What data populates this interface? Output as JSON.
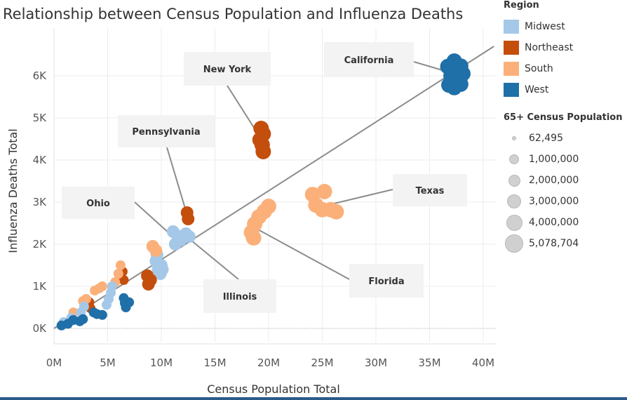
{
  "chart_data": {
    "type": "scatter",
    "title": "Relationship between Census Population and Influenza Deaths",
    "xlabel": "Census Population Total",
    "ylabel": "Influenza Deaths Total",
    "xlim": [
      0,
      41000000
    ],
    "ylim": [
      0,
      6700
    ],
    "x_ticks": [
      0,
      5000000,
      10000000,
      15000000,
      20000000,
      25000000,
      30000000,
      35000000,
      40000000
    ],
    "x_tick_labels": [
      "0M",
      "5M",
      "10M",
      "15M",
      "20M",
      "25M",
      "30M",
      "35M",
      "40M"
    ],
    "y_ticks": [
      0,
      1000,
      2000,
      3000,
      4000,
      5000,
      6000
    ],
    "y_tick_labels": [
      "0K",
      "1K",
      "2K",
      "3K",
      "4K",
      "5K",
      "6K"
    ],
    "grid": true,
    "trend_line": {
      "from": [
        0,
        0
      ],
      "to": [
        41000000,
        6700
      ]
    },
    "legend_placement": "right",
    "regions": [
      {
        "name": "Midwest",
        "color": "#a5c8e8"
      },
      {
        "name": "Northeast",
        "color": "#c44e0c"
      },
      {
        "name": "South",
        "color": "#fbb07a"
      },
      {
        "name": "West",
        "color": "#1f6fa8"
      }
    ],
    "size_legend": {
      "title": "65+ Census Population",
      "entries": [
        "62,495",
        "1,000,000",
        "2,000,000",
        "3,000,000",
        "4,000,000",
        "5,078,704"
      ]
    },
    "clusters": [
      {
        "label": "California",
        "region": "West",
        "points": [
          [
            36700000,
            6220
          ],
          [
            37300000,
            6350
          ],
          [
            37900000,
            6230
          ],
          [
            37000000,
            6000
          ],
          [
            37500000,
            5950
          ],
          [
            38100000,
            6050
          ],
          [
            36800000,
            5780
          ],
          [
            37300000,
            5720
          ],
          [
            37900000,
            5800
          ]
        ]
      },
      {
        "label": "New York",
        "region": "Northeast",
        "points": [
          [
            19300000,
            4750
          ],
          [
            19500000,
            4620
          ],
          [
            19200000,
            4480
          ],
          [
            19400000,
            4360
          ],
          [
            19500000,
            4200
          ]
        ]
      },
      {
        "label": "Texas",
        "region": "South",
        "points": [
          [
            24100000,
            3180
          ],
          [
            25200000,
            3250
          ],
          [
            24400000,
            2930
          ],
          [
            25000000,
            2820
          ],
          [
            25800000,
            2820
          ],
          [
            26300000,
            2770
          ]
        ]
      },
      {
        "label": "Florida",
        "region": "South",
        "points": [
          [
            18400000,
            2280
          ],
          [
            18700000,
            2480
          ],
          [
            19100000,
            2650
          ],
          [
            19600000,
            2780
          ],
          [
            20000000,
            2900
          ],
          [
            18600000,
            2150
          ]
        ]
      },
      {
        "label": "Pennsylvania",
        "region": "Northeast",
        "points": [
          [
            12400000,
            2750
          ],
          [
            12500000,
            2600
          ]
        ]
      },
      {
        "label": "Illinois",
        "region": "Midwest",
        "points": [
          [
            11100000,
            2300
          ],
          [
            11500000,
            2200
          ],
          [
            11800000,
            2100
          ],
          [
            12300000,
            2250
          ],
          [
            12600000,
            2180
          ],
          [
            11300000,
            2000
          ]
        ]
      },
      {
        "label": "Ohio",
        "region": "Midwest",
        "points": [
          [
            9500000,
            1600
          ],
          [
            9700000,
            1400
          ],
          [
            9900000,
            1300
          ],
          [
            9600000,
            1750
          ]
        ]
      },
      {
        "label": "",
        "region": "Northeast",
        "points": [
          [
            8700000,
            1250
          ],
          [
            8800000,
            1050
          ],
          [
            9000000,
            1150
          ],
          [
            6400000,
            1350
          ],
          [
            6500000,
            1150
          ],
          [
            3300000,
            620
          ],
          [
            3400000,
            480
          ],
          [
            1000000,
            120
          ]
        ]
      },
      {
        "label": "",
        "region": "South",
        "points": [
          [
            9200000,
            1950
          ],
          [
            9500000,
            1850
          ],
          [
            6200000,
            1500
          ],
          [
            6000000,
            1300
          ],
          [
            5700000,
            1100
          ],
          [
            4500000,
            1000
          ],
          [
            4200000,
            950
          ],
          [
            3800000,
            900
          ],
          [
            3000000,
            700
          ],
          [
            2700000,
            650
          ],
          [
            1800000,
            380
          ]
        ]
      },
      {
        "label": "",
        "region": "Midwest",
        "points": [
          [
            10000000,
            1500
          ],
          [
            10100000,
            1400
          ],
          [
            5400000,
            1000
          ],
          [
            5300000,
            850
          ],
          [
            5100000,
            700
          ],
          [
            4900000,
            560
          ],
          [
            2800000,
            520
          ],
          [
            2500000,
            380
          ],
          [
            1600000,
            250
          ],
          [
            900000,
            150
          ]
        ]
      },
      {
        "label": "",
        "region": "West",
        "points": [
          [
            6600000,
            600
          ],
          [
            6700000,
            500
          ],
          [
            7000000,
            620
          ],
          [
            6500000,
            720
          ],
          [
            3700000,
            380
          ],
          [
            4000000,
            340
          ],
          [
            4500000,
            320
          ],
          [
            2700000,
            220
          ],
          [
            2400000,
            170
          ],
          [
            1300000,
            110
          ],
          [
            700000,
            70
          ],
          [
            1800000,
            200
          ]
        ]
      }
    ],
    "annotations": [
      "California",
      "New York",
      "Pennsylvania",
      "Texas",
      "Ohio",
      "Florida",
      "Illinois"
    ]
  }
}
